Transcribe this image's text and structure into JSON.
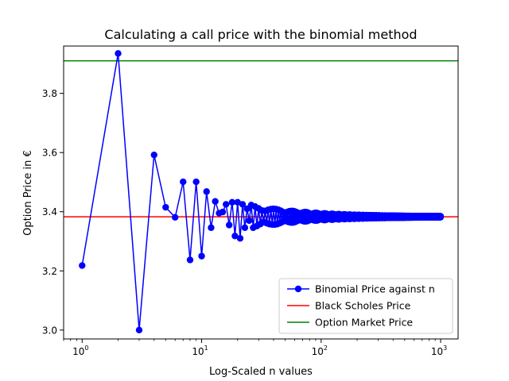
{
  "chart_data": {
    "type": "line",
    "title": "Calculating a call price with the binomial method",
    "xlabel": "Log-Scaled n values",
    "ylabel": "Option Price in €",
    "xscale": "log",
    "xlim": [
      0.7,
      1400
    ],
    "ylim": [
      2.97,
      3.96
    ],
    "x_ticks": [
      {
        "value": 1,
        "base": "10",
        "exp": "0"
      },
      {
        "value": 10,
        "base": "10",
        "exp": "1"
      },
      {
        "value": 100,
        "base": "10",
        "exp": "2"
      },
      {
        "value": 1000,
        "base": "10",
        "exp": "3"
      }
    ],
    "y_ticks": [
      {
        "value": 3.0,
        "label": "3.0"
      },
      {
        "value": 3.2,
        "label": "3.2"
      },
      {
        "value": 3.4,
        "label": "3.4"
      },
      {
        "value": 3.6,
        "label": "3.6"
      },
      {
        "value": 3.8,
        "label": "3.8"
      }
    ],
    "grid": false,
    "legend_position": "lower-right",
    "series": [
      {
        "name": "Binomial Price against n",
        "color": "#0000ff",
        "marker": "circle",
        "x": [
          1,
          2,
          3,
          4,
          5,
          6,
          7,
          8,
          9,
          10,
          11,
          12,
          13,
          14,
          15,
          16,
          17,
          18,
          19,
          20,
          21,
          22,
          23,
          24,
          25
        ],
        "y": [
          3.218,
          3.935,
          3.0,
          3.592,
          3.415,
          3.381,
          3.501,
          3.237,
          3.501,
          3.25,
          3.468,
          3.346,
          3.435,
          3.395,
          3.399,
          3.425,
          3.355,
          3.432,
          3.318,
          3.432,
          3.31,
          3.425,
          3.346,
          3.41,
          3.37
        ],
        "dense_tail": {
          "n_start": 26,
          "n_end": 1000,
          "center": 3.383,
          "amplitude_at_start": 0.04,
          "decay_exponent": 0.9
        }
      },
      {
        "name": "Black Scholes Price",
        "color": "#ff0000",
        "type": "hline",
        "y": 3.383
      },
      {
        "name": "Option Market Price",
        "color": "#008000",
        "type": "hline",
        "y": 3.91
      }
    ]
  }
}
